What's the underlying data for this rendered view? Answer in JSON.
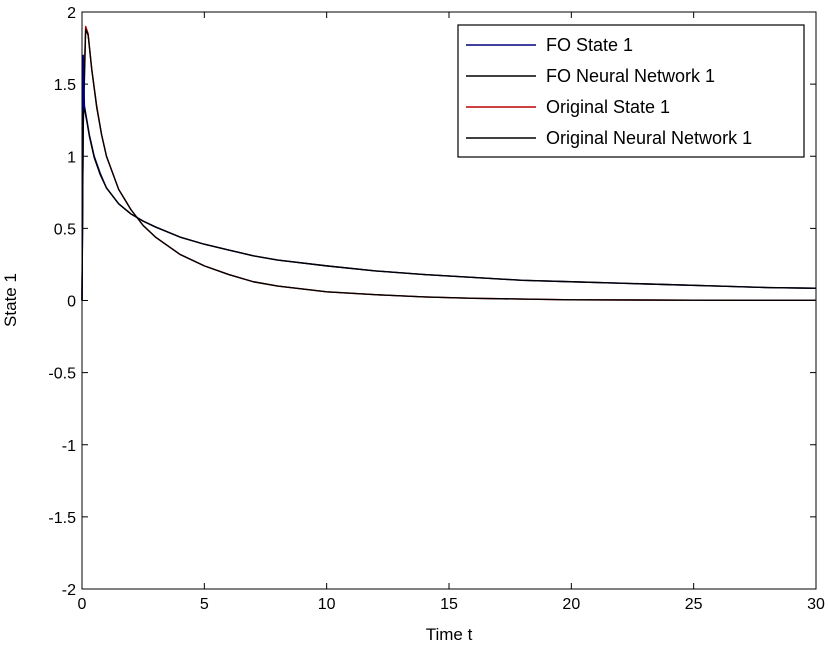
{
  "chart_data": {
    "type": "line",
    "title": "",
    "xlabel": "Time t",
    "ylabel": "State 1",
    "xlim": [
      0,
      30
    ],
    "ylim": [
      -2,
      2
    ],
    "xticks": [
      0,
      5,
      10,
      15,
      20,
      25,
      30
    ],
    "yticks": [
      -2,
      -1.5,
      -1,
      -0.5,
      0,
      0.5,
      1,
      1.5,
      2
    ],
    "xtick_labels": [
      "0",
      "5",
      "10",
      "15",
      "20",
      "25",
      "30"
    ],
    "ytick_labels": [
      "-2",
      "-1.5",
      "-1",
      "-0.5",
      "0",
      "0.5",
      "1",
      "1.5",
      "2"
    ],
    "grid": false,
    "legend_position": "top-right",
    "series": [
      {
        "name": "FO State 1",
        "color": "#00007f",
        "x": [
          0,
          0.05,
          0.1,
          0.2,
          0.3,
          0.5,
          0.75,
          1,
          1.5,
          2,
          2.5,
          3,
          4,
          5,
          6,
          7,
          8,
          10,
          12,
          14,
          16,
          18,
          20,
          22,
          24,
          26,
          28,
          30
        ],
        "y": [
          0,
          1.7,
          1.35,
          1.25,
          1.15,
          1.0,
          0.88,
          0.78,
          0.67,
          0.6,
          0.55,
          0.51,
          0.44,
          0.39,
          0.35,
          0.31,
          0.28,
          0.24,
          0.205,
          0.18,
          0.16,
          0.14,
          0.13,
          0.12,
          0.11,
          0.1,
          0.09,
          0.085
        ]
      },
      {
        "name": "FO Neural Network 1",
        "color": "#000000",
        "x": [
          0,
          0.05,
          0.1,
          0.2,
          0.3,
          0.5,
          0.75,
          1,
          1.5,
          2,
          2.5,
          3,
          4,
          5,
          6,
          7,
          8,
          10,
          12,
          14,
          16,
          18,
          20,
          22,
          24,
          26,
          28,
          30
        ],
        "y": [
          0,
          1.3,
          1.33,
          1.24,
          1.14,
          0.99,
          0.87,
          0.78,
          0.67,
          0.6,
          0.55,
          0.51,
          0.44,
          0.39,
          0.35,
          0.31,
          0.28,
          0.24,
          0.205,
          0.18,
          0.16,
          0.14,
          0.13,
          0.12,
          0.11,
          0.1,
          0.09,
          0.085
        ]
      },
      {
        "name": "Original State 1",
        "color": "#bf0000",
        "x": [
          0,
          0.05,
          0.15,
          0.25,
          0.4,
          0.6,
          0.8,
          1,
          1.5,
          2,
          2.5,
          3,
          4,
          5,
          6,
          7,
          8,
          9,
          10,
          12,
          14,
          16,
          18,
          20,
          25,
          30
        ],
        "y": [
          0,
          1.35,
          1.9,
          1.85,
          1.6,
          1.35,
          1.15,
          1.0,
          0.77,
          0.63,
          0.52,
          0.44,
          0.32,
          0.24,
          0.18,
          0.13,
          0.1,
          0.08,
          0.06,
          0.04,
          0.025,
          0.015,
          0.01,
          0.005,
          0.002,
          0.001
        ]
      },
      {
        "name": "Original Neural Network 1",
        "color": "#000000",
        "x": [
          0,
          0.05,
          0.15,
          0.25,
          0.4,
          0.6,
          0.8,
          1,
          1.5,
          2,
          2.5,
          3,
          4,
          5,
          6,
          7,
          8,
          9,
          10,
          12,
          14,
          16,
          18,
          20,
          25,
          30
        ],
        "y": [
          0,
          1.2,
          1.88,
          1.84,
          1.6,
          1.34,
          1.15,
          1.0,
          0.77,
          0.63,
          0.52,
          0.44,
          0.32,
          0.24,
          0.18,
          0.13,
          0.1,
          0.08,
          0.06,
          0.04,
          0.025,
          0.015,
          0.01,
          0.005,
          0.002,
          0.001
        ]
      }
    ]
  }
}
